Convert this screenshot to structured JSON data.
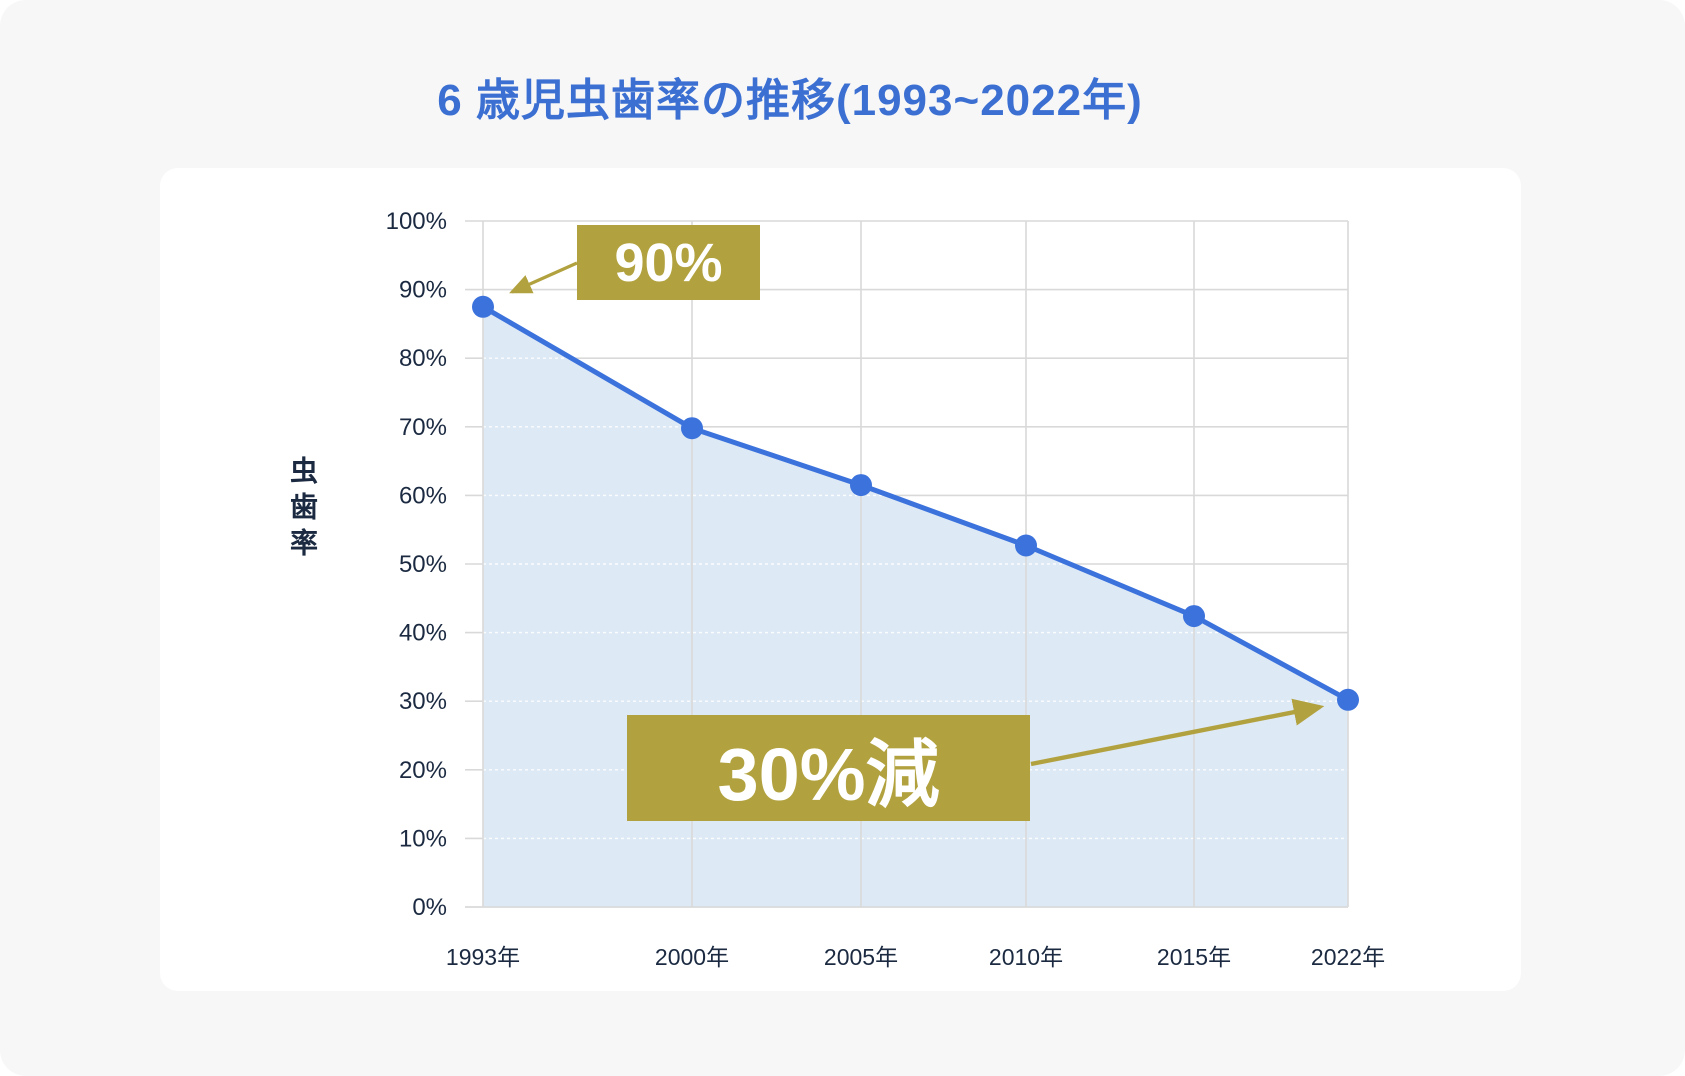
{
  "page": {
    "title": "6 歳児虫歯率の推移(1993~2022年)"
  },
  "chart_data": {
    "type": "area",
    "title": "6 歳児虫歯率の推移(1993~2022年)",
    "x": [
      "1993年",
      "2000年",
      "2005年",
      "2010年",
      "2015年",
      "2022年"
    ],
    "values": [
      87.5,
      69.8,
      61.5,
      52.7,
      42.4,
      30.2
    ],
    "series": [
      {
        "name": "虫歯率",
        "values": [
          87.5,
          69.8,
          61.5,
          52.7,
          42.4,
          30.2
        ]
      }
    ],
    "xlabel": "",
    "ylabel": "虫歯率",
    "ylim": [
      0,
      100
    ],
    "yticks": [
      "0%",
      "10%",
      "20%",
      "30%",
      "40%",
      "50%",
      "60%",
      "70%",
      "80%",
      "90%",
      "100%"
    ],
    "grid": true,
    "legend": "none",
    "annotations": [
      {
        "text": "90%",
        "target_year": "1993年",
        "target_value": 87.5
      },
      {
        "text": "30%減",
        "target_year": "2022年",
        "target_value": 30.2
      }
    ],
    "colors": {
      "line": "#3B72DC",
      "point": "#3B72DC",
      "area": "#DEE9F6",
      "grid": "#D9D9D9",
      "axis_text": "#1B2A41",
      "annotation_bg": "#B2A23F",
      "annotation_text": "#FFFFFF",
      "title": "#3B6FD1"
    }
  }
}
